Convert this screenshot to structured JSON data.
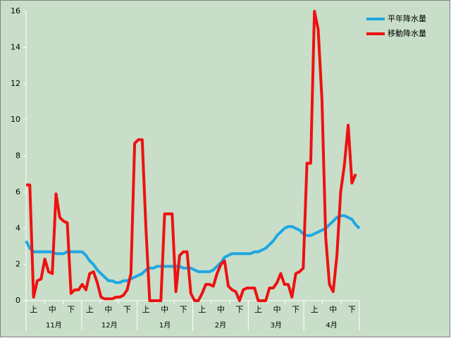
{
  "chart_data": {
    "type": "line",
    "categories": [
      null,
      null,
      "上",
      null,
      null,
      null,
      null,
      "中",
      null,
      null,
      null,
      null,
      "下",
      null,
      null,
      null,
      null,
      "上",
      null,
      null,
      null,
      null,
      "中",
      null,
      null,
      null,
      null,
      "下",
      null,
      null,
      null,
      null,
      "上",
      null,
      null,
      null,
      null,
      "中",
      null,
      null,
      null,
      null,
      "下",
      null,
      null,
      null,
      null,
      "上",
      null,
      null,
      null,
      null,
      "中",
      null,
      null,
      null,
      null,
      "下",
      null,
      null,
      null,
      null,
      "上",
      null,
      null,
      null,
      null,
      "中",
      null,
      null,
      null,
      null,
      "下",
      null,
      null,
      null,
      null,
      "上",
      null,
      null,
      null,
      null,
      "中",
      null,
      null,
      null,
      null,
      "下",
      null,
      null
    ],
    "month_labels": [
      "11月",
      "12月",
      "1月",
      "2月",
      "3月",
      "4月"
    ],
    "ylim": [
      0,
      16
    ],
    "yticks": [
      0,
      2,
      4,
      6,
      8,
      10,
      12,
      14,
      16
    ],
    "legend": "right",
    "series": [
      {
        "name": "平年降水量",
        "color": "#1ea7e4",
        "values": [
          3.3,
          2.9,
          2.7,
          2.7,
          2.7,
          2.7,
          2.7,
          2.7,
          2.6,
          2.6,
          2.6,
          2.7,
          2.7,
          2.7,
          2.7,
          2.7,
          2.5,
          2.2,
          2.0,
          1.7,
          1.5,
          1.3,
          1.1,
          1.1,
          1.0,
          1.0,
          1.1,
          1.1,
          1.2,
          1.3,
          1.4,
          1.5,
          1.7,
          1.8,
          1.8,
          1.9,
          1.9,
          1.9,
          1.9,
          1.9,
          1.9,
          1.9,
          1.8,
          1.8,
          1.8,
          1.7,
          1.6,
          1.6,
          1.6,
          1.6,
          1.7,
          1.9,
          2.1,
          2.4,
          2.5,
          2.6,
          2.6,
          2.6,
          2.6,
          2.6,
          2.6,
          2.7,
          2.7,
          2.8,
          2.9,
          3.1,
          3.3,
          3.6,
          3.8,
          4.0,
          4.1,
          4.1,
          4.0,
          3.9,
          3.7,
          3.6,
          3.6,
          3.7,
          3.8,
          3.9,
          4.0,
          4.2,
          4.4,
          4.6,
          4.7,
          4.7,
          4.6,
          4.5,
          4.2,
          4.0
        ]
      },
      {
        "name": "移動降水量",
        "color": "#ee1111",
        "values": [
          6.4,
          6.4,
          0.2,
          1.1,
          1.2,
          2.3,
          1.6,
          1.5,
          5.9,
          4.6,
          4.4,
          4.3,
          0.4,
          0.6,
          0.6,
          0.9,
          0.6,
          1.5,
          1.6,
          1.0,
          0.2,
          0.1,
          0.1,
          0.1,
          0.2,
          0.2,
          0.3,
          0.6,
          1.5,
          8.7,
          8.9,
          8.9,
          4.0,
          0.0,
          0.0,
          0.0,
          0.0,
          4.8,
          4.8,
          4.8,
          0.5,
          2.5,
          2.7,
          2.7,
          0.4,
          0.0,
          0.0,
          0.4,
          0.9,
          0.9,
          0.8,
          1.5,
          2.0,
          2.2,
          0.8,
          0.6,
          0.5,
          0.0,
          0.6,
          0.7,
          0.7,
          0.7,
          0.0,
          0.0,
          0.0,
          0.7,
          0.7,
          1.0,
          1.5,
          0.9,
          0.9,
          0.2,
          1.5,
          1.6,
          1.8,
          7.6,
          7.6,
          16,
          15,
          11.1,
          3.5,
          0.9,
          0.5,
          2.5,
          6.0,
          7.5,
          9.7,
          6.5,
          7.0,
          null
        ]
      }
    ]
  }
}
